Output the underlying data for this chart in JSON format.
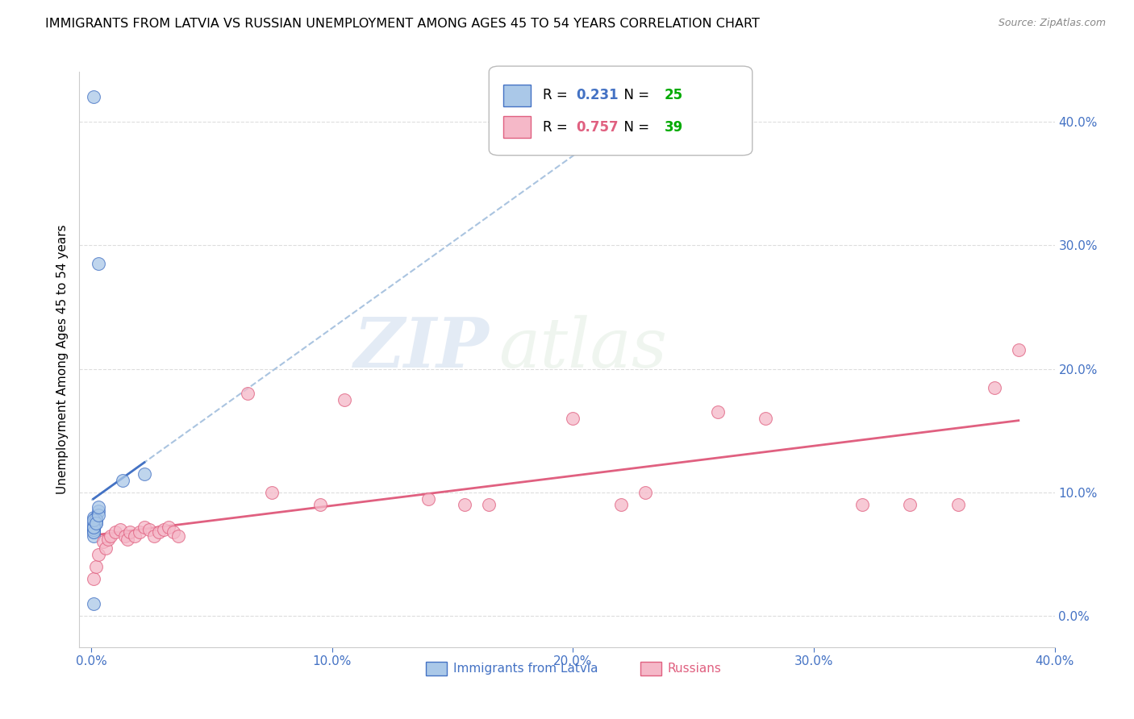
{
  "title": "IMMIGRANTS FROM LATVIA VS RUSSIAN UNEMPLOYMENT AMONG AGES 45 TO 54 YEARS CORRELATION CHART",
  "source": "Source: ZipAtlas.com",
  "ylabel": "Unemployment Among Ages 45 to 54 years",
  "watermark_zip": "ZIP",
  "watermark_atlas": "atlas",
  "latvia_x": [
    0.001,
    0.003,
    0.001,
    0.001,
    0.002,
    0.002,
    0.003,
    0.002,
    0.001,
    0.001,
    0.001,
    0.001,
    0.001,
    0.001,
    0.002,
    0.001,
    0.001,
    0.001,
    0.001,
    0.002,
    0.003,
    0.003,
    0.022,
    0.013,
    0.0008
  ],
  "latvia_y": [
    0.42,
    0.285,
    0.07,
    0.08,
    0.075,
    0.08,
    0.085,
    0.078,
    0.075,
    0.07,
    0.072,
    0.068,
    0.065,
    0.07,
    0.078,
    0.072,
    0.068,
    0.072,
    0.078,
    0.075,
    0.082,
    0.088,
    0.115,
    0.11,
    0.01
  ],
  "russian_x": [
    0.001,
    0.002,
    0.003,
    0.005,
    0.006,
    0.007,
    0.008,
    0.01,
    0.012,
    0.014,
    0.015,
    0.016,
    0.018,
    0.02,
    0.022,
    0.024,
    0.026,
    0.028,
    0.03,
    0.032,
    0.034,
    0.036,
    0.065,
    0.075,
    0.095,
    0.105,
    0.14,
    0.155,
    0.165,
    0.2,
    0.22,
    0.23,
    0.26,
    0.28,
    0.32,
    0.34,
    0.36,
    0.375,
    0.385
  ],
  "russian_y": [
    0.03,
    0.04,
    0.05,
    0.06,
    0.055,
    0.062,
    0.065,
    0.068,
    0.07,
    0.065,
    0.062,
    0.068,
    0.065,
    0.068,
    0.072,
    0.07,
    0.065,
    0.068,
    0.07,
    0.072,
    0.068,
    0.065,
    0.18,
    0.1,
    0.09,
    0.175,
    0.095,
    0.09,
    0.09,
    0.16,
    0.09,
    0.1,
    0.165,
    0.16,
    0.09,
    0.09,
    0.09,
    0.185,
    0.215
  ],
  "latvia_R": 0.231,
  "latvia_N": 25,
  "russian_R": 0.757,
  "russian_N": 39,
  "latvian_fill_color": "#aac8e8",
  "russian_fill_color": "#f5b8c8",
  "latvian_edge_color": "#4472c4",
  "russian_edge_color": "#e06080",
  "latvian_line_color": "#4472c4",
  "russian_line_color": "#e06080",
  "dashed_line_color": "#aac4e0",
  "xlim": [
    -0.005,
    0.4
  ],
  "ylim": [
    -0.025,
    0.44
  ],
  "xticks": [
    0.0,
    0.1,
    0.2,
    0.3,
    0.4
  ],
  "xtick_labels": [
    "0.0%",
    "10.0%",
    "20.0%",
    "30.0%",
    "40.0%"
  ],
  "yticks_right": [
    0.0,
    0.1,
    0.2,
    0.3,
    0.4
  ],
  "ytick_right_labels": [
    "0.0%",
    "10.0%",
    "20.0%",
    "30.0%",
    "40.0%"
  ],
  "background_color": "#ffffff",
  "grid_color": "#dddddd",
  "title_fontsize": 11.5,
  "axis_label_fontsize": 11,
  "tick_fontsize": 11,
  "legend_fontsize": 12,
  "legend_R_color": "#4472c4",
  "legend_N_color": "#00aa00"
}
